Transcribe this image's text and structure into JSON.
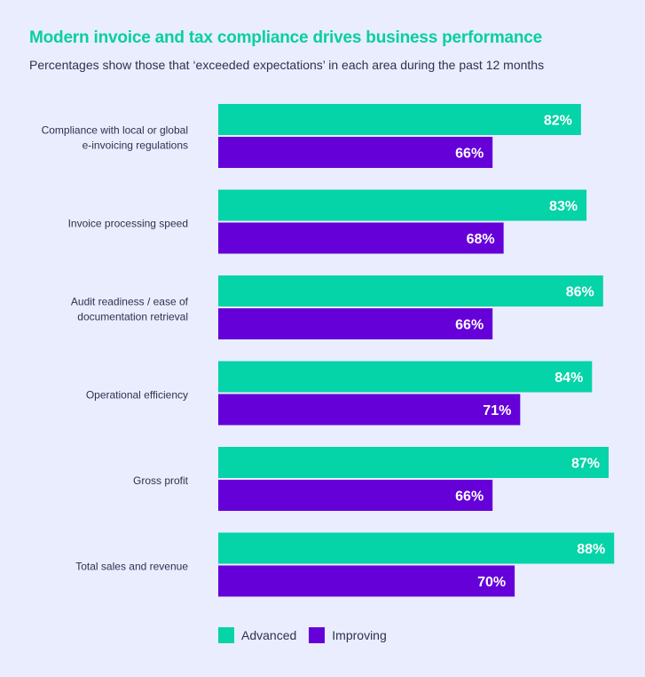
{
  "chart_data": {
    "type": "bar",
    "orientation": "horizontal",
    "title": "Modern invoice and tax compliance drives business performance",
    "subtitle": "Percentages show those that ‘exceeded expectations’ in each area during the past 12 months",
    "categories": [
      [
        "Compliance with local or global",
        "e-invoicing regulations"
      ],
      [
        "Invoice processing speed"
      ],
      [
        "Audit readiness / ease of",
        "documentation retrieval"
      ],
      [
        "Operational efficiency"
      ],
      [
        "Gross profit"
      ],
      [
        "Total sales and revenue"
      ]
    ],
    "series": [
      {
        "name": "Advanced",
        "color": "#05d3a8",
        "values": [
          82,
          83,
          86,
          84,
          87,
          88
        ]
      },
      {
        "name": "Improving",
        "color": "#6500d9",
        "values": [
          66,
          68,
          66,
          71,
          66,
          70
        ]
      }
    ],
    "value_suffix": "%",
    "legend_position": "bottom-left",
    "grid": false
  }
}
